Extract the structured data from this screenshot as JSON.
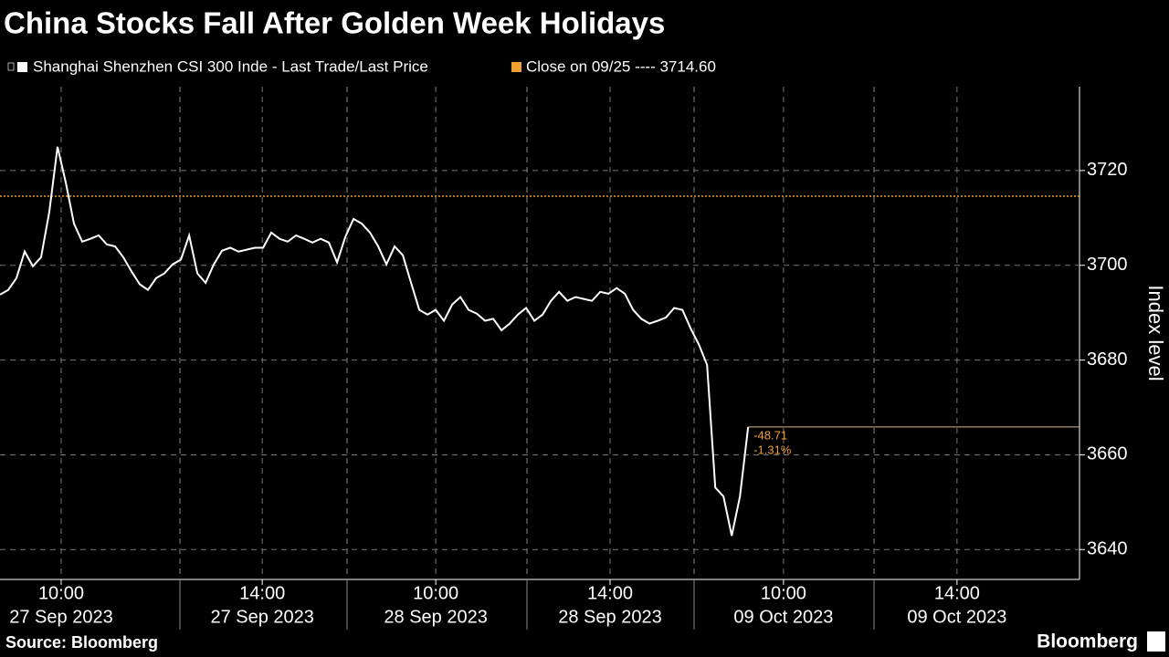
{
  "chart_data": {
    "type": "line",
    "title": "China Stocks Fall After Golden Week Holidays",
    "y_label": "Index level",
    "source": "Source: Bloomberg",
    "brand": "Bloomberg",
    "series": [
      {
        "name": "Shanghai Shenzhen CSI 300 Inde - Last Trade/Last Price",
        "color": "#ffffff",
        "values": [
          3693.8,
          3694.8,
          3697.3,
          3702.9,
          3699.8,
          3701.7,
          3711.3,
          3725,
          3717.5,
          3708.8,
          3705,
          3705.6,
          3706.3,
          3704.4,
          3704,
          3701.7,
          3698.7,
          3696,
          3694.8,
          3697.3,
          3698.3,
          3700.2,
          3701.2,
          3706.3,
          3698.3,
          3696.3,
          3700.2,
          3703.1,
          3703.7,
          3702.9,
          3703.3,
          3703.7,
          3703.7,
          3706.9,
          3705.6,
          3705,
          3706.3,
          3705.6,
          3704.8,
          3705.6,
          3704.8,
          3700.6,
          3706,
          3709.8,
          3708.8,
          3706.9,
          3704,
          3700.2,
          3704,
          3702.1,
          3696.3,
          3690.6,
          3689.6,
          3690.6,
          3688.3,
          3691.7,
          3693.3,
          3690.6,
          3689.8,
          3688.3,
          3688.7,
          3686.3,
          3687.7,
          3689.6,
          3691,
          3688.3,
          3689.6,
          3692.5,
          3694.4,
          3692.5,
          3693.3,
          3692.9,
          3692.5,
          3694.4,
          3694,
          3695.2,
          3694,
          3690.6,
          3688.7,
          3687.7,
          3688.3,
          3689,
          3691,
          3690.6,
          3686.7,
          3683.3,
          3679,
          3653.1,
          3651.2,
          3642.9,
          3651.2,
          3665.89
        ]
      }
    ],
    "reference": {
      "name": "Close on 09/25 ---- 3714.60",
      "value": 3714.6,
      "color": "#f0a030"
    },
    "change_labels": [
      "-48.71",
      "-1.31%"
    ],
    "xlim": [
      0,
      131.3
    ],
    "xticks": [
      {
        "value": 7.44,
        "label": "10:00"
      },
      {
        "value": 31.9,
        "label": "14:00"
      },
      {
        "value": 53,
        "label": "10:00"
      },
      {
        "value": 74.2,
        "label": "14:00"
      },
      {
        "value": 95.3,
        "label": "10:00"
      },
      {
        "value": 116.4,
        "label": "14:00"
      }
    ],
    "x_date_labels": [
      "27 Sep 2023",
      "27 Sep 2023",
      "28 Sep 2023",
      "28 Sep 2023",
      "09 Oct 2023",
      "09 Oct 2023"
    ],
    "ylim": [
      3633.7,
      3737.7
    ],
    "yticks": [
      3640,
      3660,
      3680,
      3700,
      3720
    ],
    "grid": true
  }
}
